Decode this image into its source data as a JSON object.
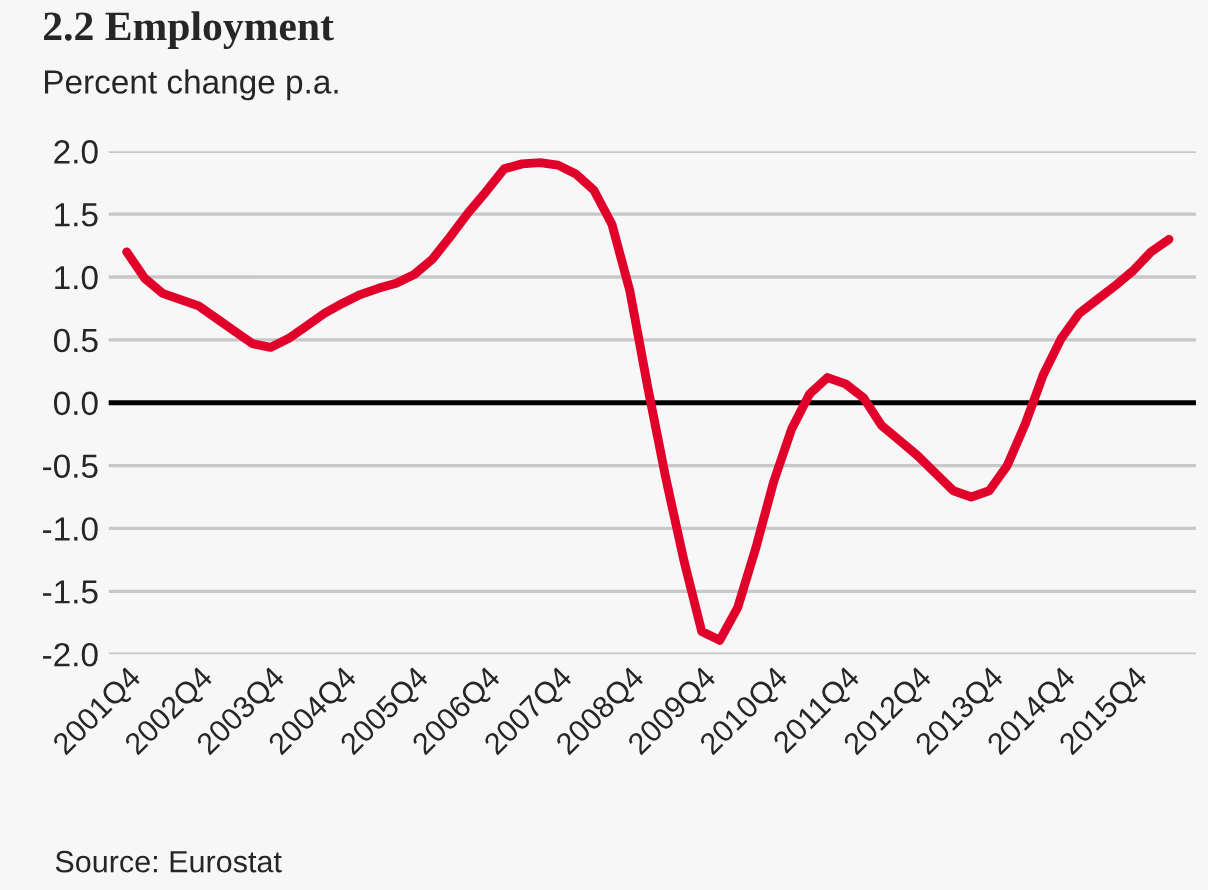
{
  "chart_data": {
    "type": "line",
    "title": "2.2 Employment",
    "subtitle": "Percent change p.a.",
    "categories": [
      "2001Q4",
      null,
      null,
      null,
      "2002Q4",
      null,
      null,
      null,
      "2003Q4",
      null,
      null,
      null,
      "2004Q4",
      null,
      null,
      null,
      "2005Q4",
      null,
      null,
      null,
      "2006Q4",
      null,
      null,
      null,
      "2007Q4",
      null,
      null,
      null,
      "2008Q4",
      null,
      null,
      null,
      "2009Q4",
      null,
      null,
      null,
      "2010Q4",
      null,
      null,
      null,
      "2011Q4",
      null,
      null,
      null,
      "2012Q4",
      null,
      null,
      null,
      "2013Q4",
      null,
      null,
      null,
      "2014Q4",
      null,
      null,
      null,
      "2015Q4",
      null,
      null
    ],
    "series": [
      {
        "color": "#e0002a",
        "values": [
          1.2,
          0.99,
          0.87,
          0.82,
          0.77,
          0.67,
          0.57,
          0.47,
          0.44,
          0.51,
          0.61,
          0.71,
          0.79,
          0.86,
          0.91,
          0.95,
          1.02,
          1.14,
          1.32,
          1.51,
          1.68,
          1.86,
          1.9,
          1.91,
          1.89,
          1.82,
          1.69,
          1.42,
          0.89,
          0.12,
          -0.6,
          -1.25,
          -1.82,
          -1.89,
          -1.63,
          -1.16,
          -0.63,
          -0.21,
          0.07,
          0.2,
          0.15,
          0.04,
          -0.18,
          -0.3,
          -0.42,
          -0.56,
          -0.7,
          -0.75,
          -0.7,
          -0.5,
          -0.17,
          0.22,
          0.51,
          0.71,
          0.82,
          0.93,
          1.05,
          1.2,
          1.3
        ]
      }
    ],
    "ylim": [
      -2.0,
      2.0
    ],
    "yticks": [
      {
        "value": -2.0,
        "label": "-2.0"
      },
      {
        "value": -1.5,
        "label": "-1.5"
      },
      {
        "value": -1.0,
        "label": "-1.0"
      },
      {
        "value": -0.5,
        "label": "-0.5"
      },
      {
        "value": 0.0,
        "label": "0.0"
      },
      {
        "value": 0.5,
        "label": "0.5"
      },
      {
        "value": 1.0,
        "label": "1.0"
      },
      {
        "value": 1.5,
        "label": "1.5"
      },
      {
        "value": 2.0,
        "label": "2.0"
      }
    ],
    "grid": "y",
    "ref_lines": [
      {
        "axis": "y",
        "value": 0,
        "color": "#000000"
      }
    ],
    "annotations": [
      "Source: Eurostat"
    ]
  }
}
